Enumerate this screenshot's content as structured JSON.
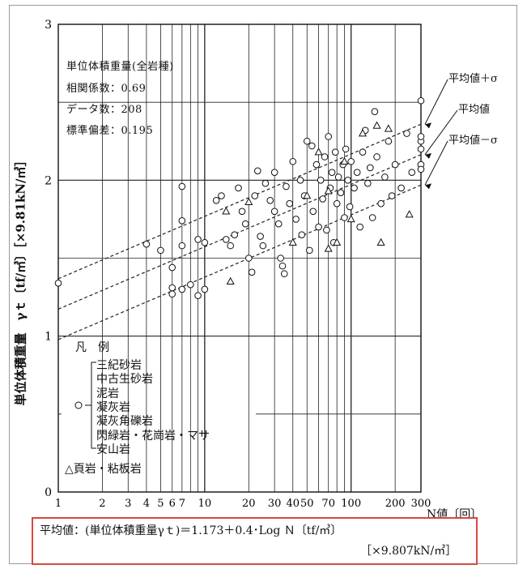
{
  "chart_data": {
    "type": "scatter",
    "x_scale": "log",
    "xlim": [
      1,
      300
    ],
    "ylim": [
      0,
      3
    ],
    "y_ticks": [
      "0",
      "1",
      "2",
      "3"
    ],
    "x_ticks": [
      "1",
      "2",
      "3",
      "4",
      "5",
      "6",
      "7",
      "10",
      "20",
      "30",
      "40",
      "50",
      "70",
      "100",
      "200",
      "300"
    ],
    "xlabel": "N値〔回〕",
    "ylabel": "単位体積重量　γｔ〔tf/㎥〕［×9.81kN/㎥］",
    "grid": true,
    "stats": {
      "heading": "単位体積重量(全岩種)",
      "correlation": "相関係数：0.69",
      "count": "データ数：208",
      "stddev": "標準偏差：0.195"
    },
    "regression": {
      "intercept": 1.173,
      "slope": 0.4,
      "sigma": 0.195
    },
    "band_labels": {
      "upper": "平均値＋σ",
      "mean": "平均値",
      "lower": "平均値－σ"
    },
    "legend": {
      "title": "凡　例",
      "circle_group": [
        "三紀砂岩",
        "中古生砂岩",
        "泥岩",
        "凝灰岩",
        "凝灰角礫岩",
        "閃緑岩・花崗岩・マサ",
        "安山岩"
      ],
      "triangle_label": "△頁岩・粘板岩"
    },
    "series": [
      {
        "marker": "circle",
        "points": [
          [
            1,
            1.34
          ],
          [
            4,
            1.59
          ],
          [
            5,
            1.55
          ],
          [
            6,
            1.44
          ],
          [
            6,
            1.31
          ],
          [
            6,
            1.27
          ],
          [
            7,
            1.96
          ],
          [
            7,
            1.74
          ],
          [
            7,
            1.58
          ],
          [
            7,
            1.3
          ],
          [
            8,
            1.33
          ],
          [
            9,
            1.26
          ],
          [
            9,
            1.62
          ],
          [
            10,
            1.6
          ],
          [
            10,
            1.3
          ],
          [
            12,
            1.87
          ],
          [
            13,
            1.9
          ],
          [
            14,
            1.62
          ],
          [
            15,
            1.58
          ],
          [
            16,
            1.65
          ],
          [
            17,
            1.95
          ],
          [
            18,
            1.8
          ],
          [
            19,
            1.72
          ],
          [
            20,
            1.5
          ],
          [
            21,
            1.41
          ],
          [
            22,
            1.9
          ],
          [
            23,
            2.06
          ],
          [
            24,
            1.64
          ],
          [
            25,
            1.58
          ],
          [
            26,
            1.98
          ],
          [
            28,
            1.87
          ],
          [
            30,
            2.05
          ],
          [
            30,
            1.8
          ],
          [
            32,
            1.72
          ],
          [
            33,
            1.5
          ],
          [
            34,
            1.45
          ],
          [
            35,
            1.4
          ],
          [
            36,
            1.96
          ],
          [
            38,
            1.85
          ],
          [
            40,
            2.12
          ],
          [
            42,
            1.75
          ],
          [
            45,
            2.0
          ],
          [
            46,
            1.65
          ],
          [
            48,
            1.9
          ],
          [
            50,
            2.25
          ],
          [
            52,
            1.55
          ],
          [
            54,
            2.22
          ],
          [
            55,
            1.8
          ],
          [
            58,
            2.1
          ],
          [
            60,
            1.7
          ],
          [
            62,
            2.0
          ],
          [
            64,
            1.88
          ],
          [
            66,
            2.15
          ],
          [
            68,
            1.68
          ],
          [
            70,
            2.28
          ],
          [
            72,
            1.95
          ],
          [
            74,
            2.05
          ],
          [
            76,
            1.6
          ],
          [
            78,
            2.18
          ],
          [
            80,
            1.85
          ],
          [
            82,
            2.02
          ],
          [
            85,
            1.92
          ],
          [
            88,
            2.1
          ],
          [
            90,
            1.76
          ],
          [
            92,
            2.2
          ],
          [
            95,
            2.0
          ],
          [
            98,
            1.83
          ],
          [
            100,
            2.12
          ],
          [
            105,
            1.95
          ],
          [
            110,
            2.05
          ],
          [
            115,
            1.7
          ],
          [
            120,
            2.18
          ],
          [
            125,
            2.32
          ],
          [
            130,
            1.98
          ],
          [
            135,
            2.08
          ],
          [
            140,
            1.76
          ],
          [
            145,
            2.44
          ],
          [
            150,
            2.15
          ],
          [
            160,
            1.85
          ],
          [
            170,
            2.02
          ],
          [
            180,
            2.25
          ],
          [
            190,
            1.9
          ],
          [
            200,
            2.1
          ],
          [
            220,
            1.95
          ],
          [
            240,
            2.3
          ],
          [
            260,
            2.05
          ],
          [
            300,
            2.51
          ],
          [
            300,
            2.25
          ],
          [
            300,
            2.1
          ],
          [
            300,
            2.2
          ],
          [
            300,
            2.07
          ],
          [
            300,
            2.28
          ]
        ]
      },
      {
        "marker": "triangle",
        "points": [
          [
            15,
            1.35
          ],
          [
            14,
            1.8
          ],
          [
            20,
            1.86
          ],
          [
            40,
            1.6
          ],
          [
            50,
            1.9
          ],
          [
            60,
            2.18
          ],
          [
            70,
            1.93
          ],
          [
            70,
            1.56
          ],
          [
            80,
            1.6
          ],
          [
            90,
            2.12
          ],
          [
            100,
            1.75
          ],
          [
            120,
            2.3
          ],
          [
            150,
            2.35
          ],
          [
            160,
            1.6
          ],
          [
            180,
            2.33
          ],
          [
            250,
            1.78
          ]
        ]
      }
    ]
  },
  "formula": {
    "main": "平均値：(単位体積重量γｔ)＝1.173＋0.4･Log Ｎ〔tf/㎥〕",
    "unit": "［×9.807kN/㎥］"
  }
}
